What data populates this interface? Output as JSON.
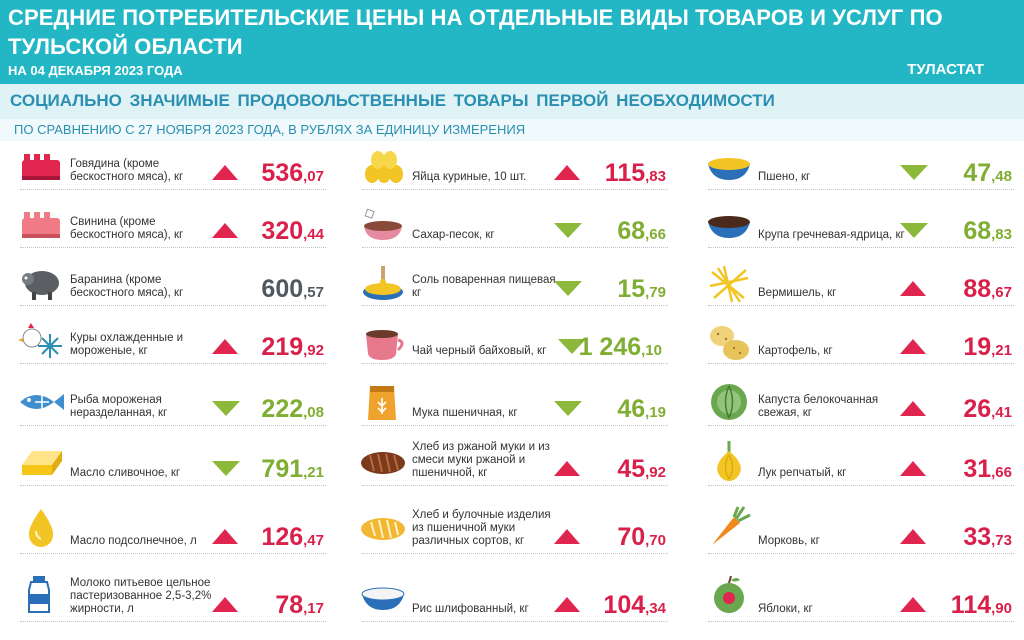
{
  "header": {
    "title": "СРЕДНИЕ ПОТРЕБИТЕЛЬСКИЕ ЦЕНЫ НА ОТДЕЛЬНЫЕ ВИДЫ ТОВАРОВ И УСЛУГ ПО ТУЛЬСКОЙ ОБЛАСТИ",
    "date": "НА 04 ДЕКАБРЯ 2023 ГОДА",
    "brand": "ТУЛАСТАТ"
  },
  "subheader": "СОЦИАЛЬНО ЗНАЧИМЫЕ ПРОДОВОЛЬСТВЕННЫЕ ТОВАРЫ ПЕРВОЙ НЕОБХОДИМОСТИ",
  "note": "ПО СРАВНЕНИЮ С 27 НОЯБРЯ 2023 ГОДА, В РУБЛЯХ ЗА ЕДИНИЦУ ИЗМЕРЕНИЯ",
  "colors": {
    "up": "#e0264f",
    "down": "#8cb83b",
    "same": "#4f5a60"
  },
  "columns": [
    [
      {
        "name": "Говядина (кроме бескостного мяса), кг",
        "int": "536",
        "dec": ",07",
        "trend": "up",
        "icon": "beef-icon"
      },
      {
        "name": "Свинина (кроме бескостного мяса), кг",
        "int": "320",
        "dec": ",44",
        "trend": "up",
        "icon": "pork-icon"
      },
      {
        "name": "Баранина (кроме бескостного мяса), кг",
        "int": "600",
        "dec": ",57",
        "trend": "same",
        "icon": "lamb-icon"
      },
      {
        "name": "Куры охлажденные и мороженые, кг",
        "int": "219",
        "dec": ",92",
        "trend": "up",
        "icon": "chicken-icon"
      },
      {
        "name": "Рыба мороженая неразделанная, кг",
        "int": "222",
        "dec": ",08",
        "trend": "down",
        "icon": "fish-icon"
      },
      {
        "name": "Масло сливочное, кг",
        "int": "791",
        "dec": ",21",
        "trend": "down",
        "icon": "butter-icon"
      },
      {
        "name": "Масло подсолнечное, л",
        "int": "126",
        "dec": ",47",
        "trend": "up",
        "icon": "oil-drop-icon"
      },
      {
        "name": "Молоко питьевое цельное пастеризованное 2,5-3,2% жирности, л",
        "int": "78",
        "dec": ",17",
        "trend": "up",
        "icon": "milk-icon"
      }
    ],
    [
      {
        "name": "Яйца куриные, 10 шт.",
        "int": "115",
        "dec": ",83",
        "trend": "up",
        "icon": "eggs-icon"
      },
      {
        "name": "Сахар-песок, кг",
        "int": "68",
        "dec": ",66",
        "trend": "down",
        "icon": "sugar-icon"
      },
      {
        "name": "Соль поваренная пищевая, кг",
        "int": "15",
        "dec": ",79",
        "trend": "down",
        "icon": "salt-icon"
      },
      {
        "name": "Чай черный байховый, кг",
        "int": "1 246",
        "dec": ",10",
        "trend": "down",
        "icon": "tea-icon"
      },
      {
        "name": "Мука пшеничная, кг",
        "int": "46",
        "dec": ",19",
        "trend": "down",
        "icon": "flour-icon"
      },
      {
        "name": "Хлеб из ржаной муки и из смеси муки ржаной и пшеничной, кг",
        "int": "45",
        "dec": ",92",
        "trend": "up",
        "icon": "rye-bread-icon"
      },
      {
        "name": "Хлеб и булочные изделия из пшеничной муки различных сортов, кг",
        "int": "70",
        "dec": ",70",
        "trend": "up",
        "icon": "wheat-bread-icon"
      },
      {
        "name": "Рис шлифованный, кг",
        "int": "104",
        "dec": ",34",
        "trend": "up",
        "icon": "rice-icon"
      }
    ],
    [
      {
        "name": "Пшено, кг",
        "int": "47",
        "dec": ",48",
        "trend": "down",
        "icon": "millet-icon"
      },
      {
        "name": "Крупа гречневая-ядрица, кг",
        "int": "68",
        "dec": ",83",
        "trend": "down",
        "icon": "buckwheat-icon"
      },
      {
        "name": "Вермишель, кг",
        "int": "88",
        "dec": ",67",
        "trend": "up",
        "icon": "pasta-icon"
      },
      {
        "name": "Картофель, кг",
        "int": "19",
        "dec": ",21",
        "trend": "up",
        "icon": "potato-icon"
      },
      {
        "name": "Капуста белокочанная свежая, кг",
        "int": "26",
        "dec": ",41",
        "trend": "up",
        "icon": "cabbage-icon"
      },
      {
        "name": "Лук репчатый, кг",
        "int": "31",
        "dec": ",66",
        "trend": "up",
        "icon": "onion-icon"
      },
      {
        "name": "Морковь, кг",
        "int": "33",
        "dec": ",73",
        "trend": "up",
        "icon": "carrot-icon"
      },
      {
        "name": "Яблоки, кг",
        "int": "114",
        "dec": ",90",
        "trend": "up",
        "icon": "apple-icon"
      }
    ]
  ]
}
